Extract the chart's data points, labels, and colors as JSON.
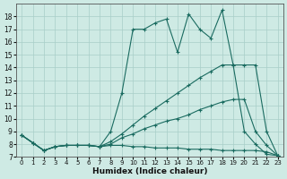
{
  "background_color": "#ceeae4",
  "grid_color": "#a8cec8",
  "line_color": "#1a6b60",
  "xlabel": "Humidex (Indice chaleur)",
  "xlim": [
    -0.5,
    23.5
  ],
  "ylim": [
    7,
    19
  ],
  "xticks": [
    0,
    1,
    2,
    3,
    4,
    5,
    6,
    7,
    8,
    9,
    10,
    11,
    12,
    13,
    14,
    15,
    16,
    17,
    18,
    19,
    20,
    21,
    22,
    23
  ],
  "yticks": [
    7,
    8,
    9,
    10,
    11,
    12,
    13,
    14,
    15,
    16,
    17,
    18
  ],
  "lines": [
    {
      "x": [
        0,
        1,
        2,
        3,
        4,
        5,
        6,
        7,
        8,
        9,
        10,
        11,
        12,
        13,
        14,
        15,
        16,
        17,
        18,
        19,
        20,
        21,
        22,
        23
      ],
      "y": [
        8.7,
        8.1,
        7.5,
        7.8,
        7.9,
        7.9,
        7.9,
        7.8,
        9.0,
        12.0,
        17.0,
        17.0,
        17.5,
        17.8,
        15.2,
        18.2,
        17.0,
        16.3,
        18.5,
        14.2,
        9.0,
        8.0,
        7.2,
        7.1
      ]
    },
    {
      "x": [
        0,
        1,
        2,
        3,
        4,
        5,
        6,
        7,
        8,
        9,
        10,
        11,
        12,
        13,
        14,
        15,
        16,
        17,
        18,
        19,
        20,
        21,
        22,
        23
      ],
      "y": [
        8.7,
        8.1,
        7.5,
        7.8,
        7.9,
        7.9,
        7.9,
        7.8,
        8.2,
        8.8,
        9.5,
        10.2,
        10.8,
        11.4,
        12.0,
        12.6,
        13.2,
        13.7,
        14.2,
        14.2,
        14.2,
        14.2,
        9.0,
        7.1
      ]
    },
    {
      "x": [
        0,
        1,
        2,
        3,
        4,
        5,
        6,
        7,
        8,
        9,
        10,
        11,
        12,
        13,
        14,
        15,
        16,
        17,
        18,
        19,
        20,
        21,
        22,
        23
      ],
      "y": [
        8.7,
        8.1,
        7.5,
        7.8,
        7.9,
        7.9,
        7.9,
        7.8,
        8.0,
        8.5,
        8.8,
        9.2,
        9.5,
        9.8,
        10.0,
        10.3,
        10.7,
        11.0,
        11.3,
        11.5,
        11.5,
        9.0,
        7.9,
        7.1
      ]
    },
    {
      "x": [
        0,
        1,
        2,
        3,
        4,
        5,
        6,
        7,
        8,
        9,
        10,
        11,
        12,
        13,
        14,
        15,
        16,
        17,
        18,
        19,
        20,
        21,
        22,
        23
      ],
      "y": [
        8.7,
        8.1,
        7.5,
        7.8,
        7.9,
        7.9,
        7.9,
        7.8,
        7.9,
        7.9,
        7.8,
        7.8,
        7.7,
        7.7,
        7.7,
        7.6,
        7.6,
        7.6,
        7.5,
        7.5,
        7.5,
        7.5,
        7.4,
        7.1
      ]
    }
  ]
}
